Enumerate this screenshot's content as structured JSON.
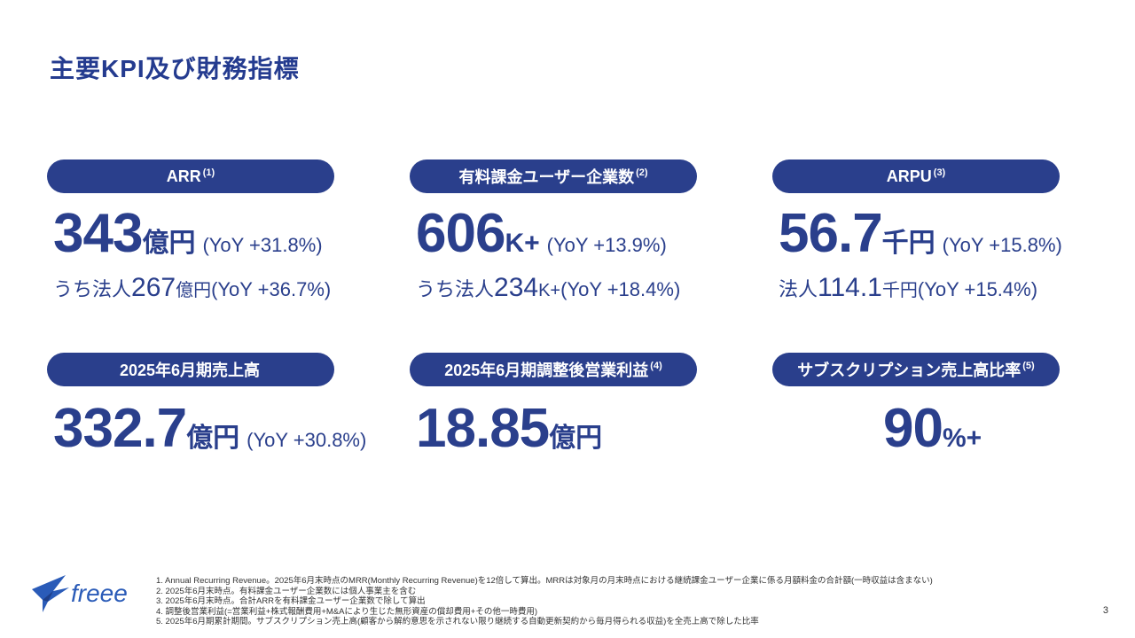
{
  "title": "主要KPI及び財務指標",
  "kpis": [
    {
      "label": "ARR",
      "note": "(1)",
      "value": "343",
      "unit": "億円",
      "yoy": "(YoY +31.8%)",
      "sub_prefix": "うち法人",
      "sub_value": "267",
      "sub_unit": "億円",
      "sub_yoy": "(YoY +36.7%)"
    },
    {
      "label": "有料課金ユーザー企業数",
      "note": "(2)",
      "value": "606",
      "unit": "K+",
      "yoy": "(YoY +13.9%)",
      "sub_prefix": "うち法人",
      "sub_value": "234",
      "sub_unit": "K+",
      "sub_yoy": "(YoY +18.4%)"
    },
    {
      "label": "ARPU",
      "note": "(3)",
      "value": "56.7",
      "unit": "千円",
      "yoy": "(YoY +15.8%)",
      "sub_prefix": "法人",
      "sub_value": "114.1",
      "sub_unit": "千円",
      "sub_yoy": "(YoY +15.4%)"
    },
    {
      "label": "2025年6月期売上高",
      "note": "",
      "value": "332.7",
      "unit": "億円",
      "yoy": "(YoY +30.8%)"
    },
    {
      "label": "2025年6月期調整後営業利益",
      "note": "(4)",
      "value": "18.85",
      "unit": "億円",
      "yoy": ""
    },
    {
      "label": "サブスクリプション売上高比率",
      "note": "(5)",
      "value": "90",
      "unit": "%+",
      "yoy": ""
    }
  ],
  "footnotes": [
    "1. Annual Recurring Revenue。2025年6月末時点のMRR(Monthly Recurring Revenue)を12倍して算出。MRRは対象月の月末時点における継続課金ユーザー企業に係る月額料金の合計額(一時収益は含まない)",
    "2. 2025年6月末時点。有料課金ユーザー企業数には個人事業主を含む",
    "3. 2025年6月末時点。合計ARRを有料課金ユーザー企業数で除して算出",
    "4. 調整後営業利益(=営業利益+株式報酬費用+M&Aにより生じた無形資産の償却費用+その他一時費用)",
    "5. 2025年6月期累計期間。サブスクリプション売上高(顧客から解約意思を示されない限り継続する自動更新契約から毎月得られる収益)を全売上高で除した比率"
  ],
  "logo_text": "freee",
  "page_number": "3",
  "colors": {
    "primary": "#2a3f8c",
    "background": "#ffffff"
  }
}
